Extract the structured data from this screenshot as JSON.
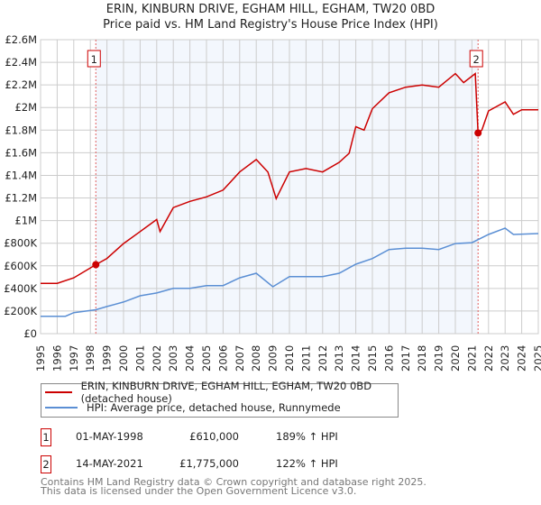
{
  "chart_data": {
    "type": "line",
    "title": "ERIN, KINBURN DRIVE, EGHAM HILL, EGHAM, TW20 0BD",
    "subtitle": "Price paid vs. HM Land Registry's House Price Index (HPI)",
    "xlim": [
      1995,
      2025
    ],
    "ylim": [
      0,
      2600000
    ],
    "x_ticks": [
      "1995",
      "1996",
      "1997",
      "1998",
      "1999",
      "2000",
      "2001",
      "2002",
      "2003",
      "2004",
      "2005",
      "2006",
      "2007",
      "2008",
      "2009",
      "2010",
      "2011",
      "2012",
      "2013",
      "2014",
      "2015",
      "2016",
      "2017",
      "2018",
      "2019",
      "2020",
      "2021",
      "2022",
      "2023",
      "2024",
      "2025"
    ],
    "y_ticks": [
      {
        "value": 0,
        "label": "£0"
      },
      {
        "value": 200000,
        "label": "£200K"
      },
      {
        "value": 400000,
        "label": "£400K"
      },
      {
        "value": 600000,
        "label": "£600K"
      },
      {
        "value": 800000,
        "label": "£800K"
      },
      {
        "value": 1000000,
        "label": "£1M"
      },
      {
        "value": 1200000,
        "label": "£1.2M"
      },
      {
        "value": 1400000,
        "label": "£1.4M"
      },
      {
        "value": 1600000,
        "label": "£1.6M"
      },
      {
        "value": 1800000,
        "label": "£1.8M"
      },
      {
        "value": 2000000,
        "label": "£2M"
      },
      {
        "value": 2200000,
        "label": "£2.2M"
      },
      {
        "value": 2400000,
        "label": "£2.4M"
      },
      {
        "value": 2600000,
        "label": "£2.6M"
      }
    ],
    "grid": true,
    "shaded_range": [
      1998.33,
      2021.37
    ],
    "series": [
      {
        "name": "ERIN, KINBURN DRIVE, EGHAM HILL, EGHAM, TW20 0BD (detached house)",
        "color": "#cc0000",
        "x": [
          1995,
          1996,
          1997,
          1998.33,
          1999,
          2000,
          2001,
          2002,
          2002.2,
          2003,
          2004,
          2005,
          2006,
          2007,
          2008,
          2008.7,
          2009.2,
          2010,
          2011,
          2012,
          2013,
          2013.6,
          2014,
          2014.5,
          2015,
          2016,
          2017,
          2018,
          2019,
          2020,
          2020.5,
          2021.2,
          2021.37,
          2021.6,
          2022,
          2023,
          2023.5,
          2024,
          2025
        ],
        "y": [
          444000,
          445000,
          494000,
          610000,
          665000,
          797000,
          903000,
          1010000,
          903000,
          1115000,
          1170000,
          1210000,
          1270000,
          1430000,
          1540000,
          1430000,
          1195000,
          1430000,
          1460000,
          1430000,
          1515000,
          1595000,
          1830000,
          1800000,
          1990000,
          2130000,
          2180000,
          2200000,
          2180000,
          2300000,
          2220000,
          2300000,
          1775000,
          1800000,
          1970000,
          2050000,
          1940000,
          1980000,
          1980000
        ]
      },
      {
        "name": "HPI: Average price, detached house, Runnymede",
        "color": "#5b8fd4",
        "x": [
          1995,
          1996.5,
          1997,
          1998.33,
          1999,
          2000,
          2001,
          2002,
          2003,
          2004,
          2005,
          2006,
          2007,
          2008,
          2009,
          2010,
          2011,
          2012,
          2013,
          2014,
          2015,
          2016,
          2017,
          2018,
          2019,
          2020,
          2021,
          2022,
          2023,
          2023.5,
          2025
        ],
        "y": [
          154000,
          154000,
          186000,
          211000,
          240000,
          280000,
          335000,
          360000,
          400000,
          400000,
          425000,
          425000,
          494000,
          534000,
          415000,
          505000,
          505000,
          505000,
          534000,
          614000,
          664000,
          744000,
          755000,
          755000,
          744000,
          797000,
          805000,
          877000,
          933000,
          877000,
          885000
        ]
      }
    ],
    "sales": [
      {
        "label": "1",
        "x": 1998.33,
        "y": 610000,
        "date": "01-MAY-1998",
        "price": "£610,000",
        "hpi": "189% ↑ HPI"
      },
      {
        "label": "2",
        "x": 2021.37,
        "y": 1775000,
        "date": "14-MAY-2021",
        "price": "£1,775,000",
        "hpi": "122% ↑ HPI"
      }
    ]
  },
  "footer": {
    "line1": "Contains HM Land Registry data © Crown copyright and database right 2025.",
    "line2": "This data is licensed under the Open Government Licence v3.0."
  }
}
